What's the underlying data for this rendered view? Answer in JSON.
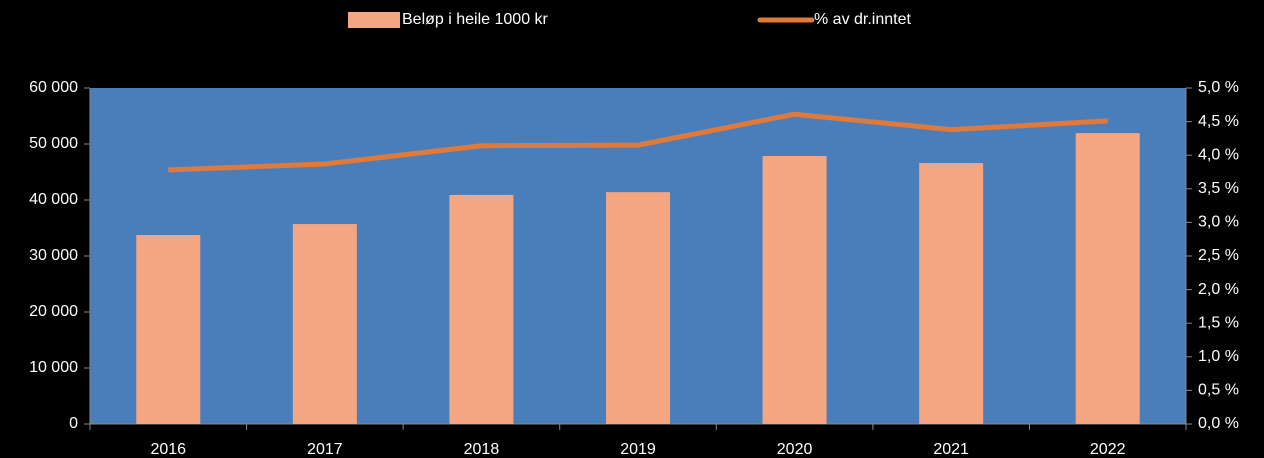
{
  "chart_data": {
    "type": "bar_line",
    "categories": [
      "2016",
      "2017",
      "2018",
      "2019",
      "2020",
      "2021",
      "2022"
    ],
    "series": [
      {
        "name": "Beløp i heile 1000 kr",
        "type": "bar",
        "color": "#f4a682",
        "values": [
          33750,
          35700,
          40900,
          41400,
          47850,
          46600,
          51950
        ]
      },
      {
        "name": "% av dr.inntet",
        "type": "line",
        "axis": "y2",
        "color": "#e07a3a",
        "values": [
          3.78,
          3.87,
          4.14,
          4.15,
          4.61,
          4.38,
          4.51
        ]
      }
    ],
    "ylim": [
      0,
      60000
    ],
    "yticks": [
      0,
      {
        "value": 10000,
        "label": "10 000"
      },
      {
        "value": 20000,
        "label": "20 000"
      },
      {
        "value": 30000,
        "label": "30 000"
      },
      {
        "value": 40000,
        "label": "40 000"
      },
      {
        "value": 50000,
        "label": "50 000"
      },
      {
        "value": 60000,
        "label": "60 000"
      }
    ],
    "y2lim": [
      0,
      5
    ],
    "y2ticks": [
      {
        "value": 0,
        "label": "0,0 %"
      },
      {
        "value": 0.5,
        "label": "0,5 %"
      },
      {
        "value": 1,
        "label": "1,0 %"
      },
      {
        "value": 1.5,
        "label": "1,5 %"
      },
      {
        "value": 2,
        "label": "2,0 %"
      },
      {
        "value": 2.5,
        "label": "2,5 %"
      },
      {
        "value": 3,
        "label": "3,0 %"
      },
      {
        "value": 3.5,
        "label": "3,5 %"
      },
      {
        "value": 4,
        "label": "4,0 %"
      },
      {
        "value": 4.5,
        "label": "4,5 %"
      },
      {
        "value": 5,
        "label": "5,0 %"
      }
    ],
    "plot_background": "#4a7ebb",
    "legend": "top",
    "grid": false
  }
}
